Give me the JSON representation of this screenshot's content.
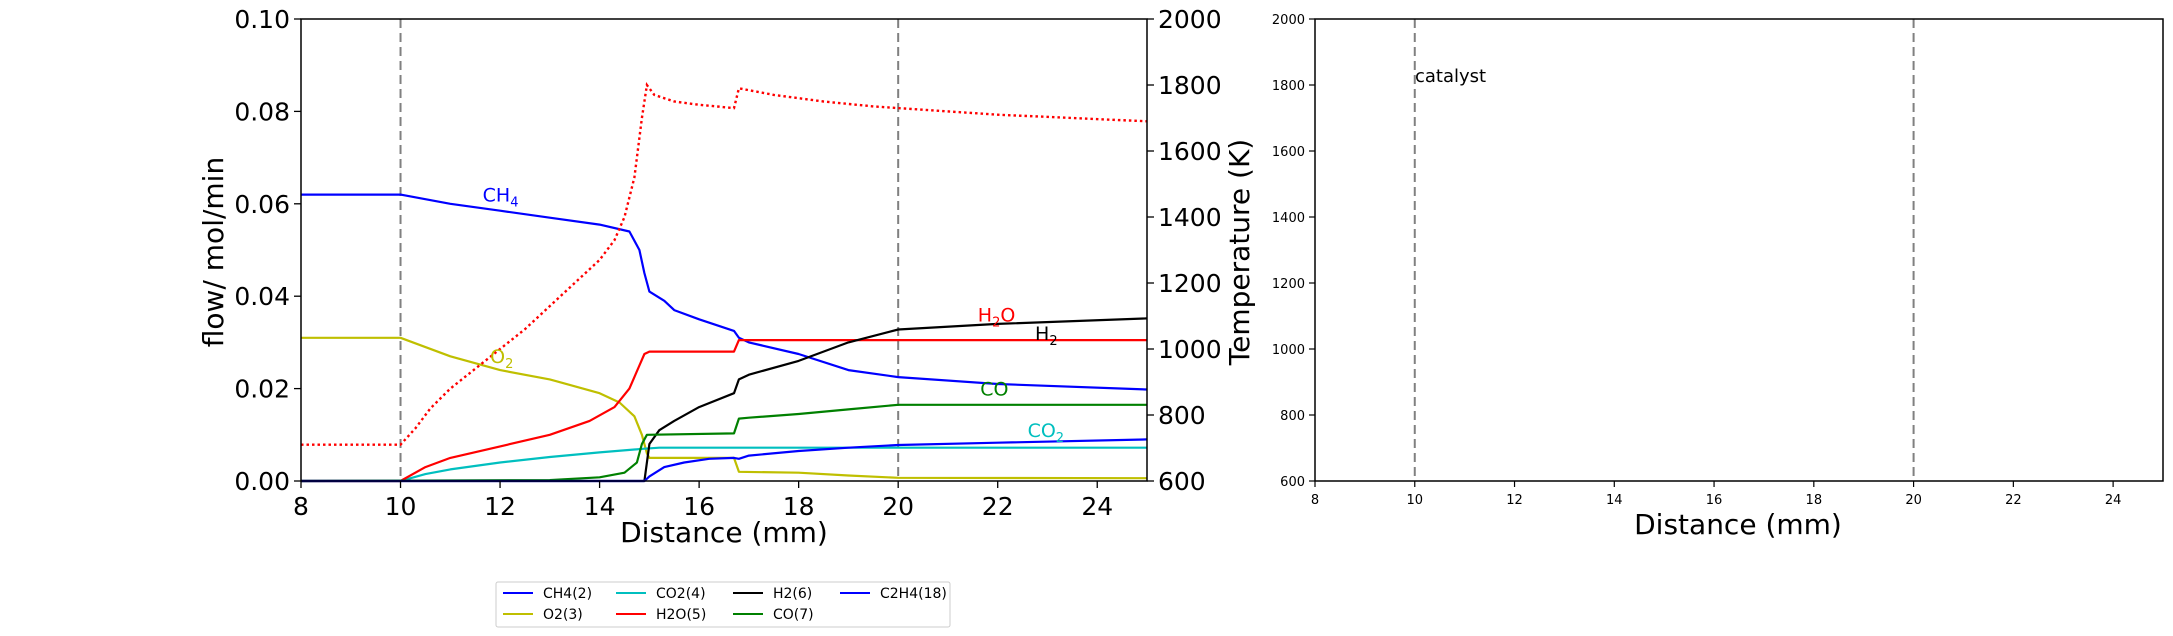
{
  "chart_data": [
    {
      "type": "line",
      "xlabel": "Distance (mm)",
      "ylabel": "flow/ mol/min",
      "y2label": "Temperature (K)",
      "xlim": [
        8,
        25
      ],
      "ylim": [
        0,
        0.1
      ],
      "y2lim": [
        600,
        2000
      ],
      "xticks": [
        "8",
        "10",
        "12",
        "14",
        "16",
        "18",
        "20",
        "22",
        "24"
      ],
      "yticks": [
        "0.00",
        "0.02",
        "0.04",
        "0.06",
        "0.08",
        "0.10"
      ],
      "y2ticks": [
        "600",
        "800",
        "1000",
        "1200",
        "1400",
        "1600",
        "1800",
        "2000"
      ],
      "vlines": [
        10,
        20
      ],
      "series": [
        {
          "name": "CH4(2)",
          "color": "#0000ff",
          "points": [
            [
              8,
              0.062
            ],
            [
              10,
              0.062
            ],
            [
              11,
              0.06
            ],
            [
              12,
              0.0585
            ],
            [
              13,
              0.057
            ],
            [
              14,
              0.0555
            ],
            [
              14.6,
              0.054
            ],
            [
              14.8,
              0.05
            ],
            [
              14.9,
              0.045
            ],
            [
              15.0,
              0.041
            ],
            [
              15.3,
              0.039
            ],
            [
              15.5,
              0.037
            ],
            [
              16.0,
              0.035
            ],
            [
              16.7,
              0.0325
            ],
            [
              16.8,
              0.031
            ],
            [
              17,
              0.03
            ],
            [
              18,
              0.0275
            ],
            [
              19,
              0.024
            ],
            [
              20,
              0.0225
            ],
            [
              22,
              0.021
            ],
            [
              25,
              0.0198
            ]
          ]
        },
        {
          "name": "O2(3)",
          "color": "#bfbf00",
          "points": [
            [
              8,
              0.031
            ],
            [
              10,
              0.031
            ],
            [
              11,
              0.027
            ],
            [
              12,
              0.024
            ],
            [
              13,
              0.022
            ],
            [
              14,
              0.019
            ],
            [
              14.4,
              0.017
            ],
            [
              14.7,
              0.014
            ],
            [
              14.85,
              0.01
            ],
            [
              14.95,
              0.006
            ],
            [
              15.0,
              0.005
            ],
            [
              16.7,
              0.005
            ],
            [
              16.8,
              0.002
            ],
            [
              18,
              0.0018
            ],
            [
              19,
              0.0012
            ],
            [
              20,
              0.0007
            ],
            [
              25,
              0.0006
            ]
          ]
        },
        {
          "name": "CO2(4)",
          "color": "#00bfbf",
          "points": [
            [
              8,
              0
            ],
            [
              10,
              0
            ],
            [
              10.5,
              0.0015
            ],
            [
              11,
              0.0025
            ],
            [
              12,
              0.004
            ],
            [
              13,
              0.0052
            ],
            [
              14,
              0.0062
            ],
            [
              14.9,
              0.007
            ],
            [
              15.2,
              0.0072
            ],
            [
              25,
              0.0072
            ]
          ]
        },
        {
          "name": "H2O(5)",
          "color": "#ff0000",
          "points": [
            [
              8,
              0
            ],
            [
              10,
              0
            ],
            [
              10.5,
              0.003
            ],
            [
              11,
              0.005
            ],
            [
              12,
              0.0075
            ],
            [
              13,
              0.01
            ],
            [
              13.8,
              0.013
            ],
            [
              14.3,
              0.016
            ],
            [
              14.6,
              0.02
            ],
            [
              14.8,
              0.025
            ],
            [
              14.9,
              0.0275
            ],
            [
              15.0,
              0.028
            ],
            [
              16.7,
              0.028
            ],
            [
              16.8,
              0.0305
            ],
            [
              25,
              0.0305
            ]
          ]
        },
        {
          "name": "H2(6)",
          "color": "#000000",
          "points": [
            [
              8,
              0
            ],
            [
              14.9,
              0
            ],
            [
              15.0,
              0.008
            ],
            [
              15.2,
              0.011
            ],
            [
              15.5,
              0.013
            ],
            [
              16.0,
              0.016
            ],
            [
              16.7,
              0.019
            ],
            [
              16.8,
              0.022
            ],
            [
              17,
              0.023
            ],
            [
              18,
              0.026
            ],
            [
              19,
              0.03
            ],
            [
              20,
              0.0328
            ],
            [
              22,
              0.034
            ],
            [
              25,
              0.0352
            ]
          ]
        },
        {
          "name": "CO(7)",
          "color": "#008000",
          "points": [
            [
              8,
              0
            ],
            [
              13,
              0.0002
            ],
            [
              14,
              0.0008
            ],
            [
              14.5,
              0.0018
            ],
            [
              14.75,
              0.004
            ],
            [
              14.85,
              0.008
            ],
            [
              14.95,
              0.01
            ],
            [
              16.7,
              0.0103
            ],
            [
              16.8,
              0.0135
            ],
            [
              17,
              0.0137
            ],
            [
              18,
              0.0145
            ],
            [
              19,
              0.0155
            ],
            [
              20,
              0.0165
            ],
            [
              25,
              0.0165
            ]
          ]
        },
        {
          "name": "C2H4(18)",
          "color": "#0000ff",
          "points": [
            [
              8,
              0
            ],
            [
              14.9,
              0
            ],
            [
              15.0,
              0.001
            ],
            [
              15.3,
              0.003
            ],
            [
              15.7,
              0.004
            ],
            [
              16.2,
              0.0048
            ],
            [
              16.7,
              0.005
            ],
            [
              16.8,
              0.0048
            ],
            [
              17,
              0.0055
            ],
            [
              18,
              0.0065
            ],
            [
              19,
              0.0072
            ],
            [
              20,
              0.0078
            ],
            [
              22,
              0.0083
            ],
            [
              25,
              0.009
            ]
          ]
        }
      ],
      "temperature_series": {
        "color": "#ff0000",
        "style": "dotted",
        "points": [
          [
            8,
            710
          ],
          [
            10,
            710
          ],
          [
            10.3,
            760
          ],
          [
            10.6,
            820
          ],
          [
            11,
            880
          ],
          [
            11.5,
            940
          ],
          [
            12,
            1000
          ],
          [
            12.5,
            1060
          ],
          [
            13,
            1130
          ],
          [
            13.5,
            1200
          ],
          [
            14,
            1270
          ],
          [
            14.3,
            1330
          ],
          [
            14.5,
            1400
          ],
          [
            14.7,
            1520
          ],
          [
            14.85,
            1700
          ],
          [
            14.95,
            1800
          ],
          [
            15.1,
            1770
          ],
          [
            15.5,
            1750
          ],
          [
            16,
            1740
          ],
          [
            16.7,
            1730
          ],
          [
            16.8,
            1790
          ],
          [
            17.5,
            1770
          ],
          [
            18.5,
            1750
          ],
          [
            19.5,
            1735
          ],
          [
            20,
            1730
          ],
          [
            22,
            1710
          ],
          [
            25,
            1690
          ]
        ]
      },
      "annotations": [
        {
          "id": "ch4",
          "base": "CH",
          "sub": "4",
          "x": 11.65,
          "y": 0.0605,
          "color": "#0000ff"
        },
        {
          "id": "o2",
          "base": "O",
          "sub": "2",
          "x": 11.8,
          "y": 0.0255,
          "color": "#bfbf00"
        },
        {
          "id": "h2o",
          "base": "H",
          "sub": "2",
          "tail": "O",
          "x": 21.6,
          "y": 0.0345,
          "color": "#ff0000"
        },
        {
          "id": "h2",
          "base": "H",
          "sub": "2",
          "x": 22.75,
          "y": 0.0305,
          "color": "#000000"
        },
        {
          "id": "co",
          "base": "CO",
          "sub": "",
          "x": 21.65,
          "y": 0.0185,
          "color": "#008000"
        },
        {
          "id": "co2",
          "base": "CO",
          "sub": "2",
          "x": 22.6,
          "y": 0.0095,
          "color": "#00bfbf"
        }
      ],
      "legend": {
        "placement": "below",
        "columns": [
          [
            {
              "label": "CH4(2)",
              "color": "#0000ff"
            },
            {
              "label": "O2(3)",
              "color": "#bfbf00"
            }
          ],
          [
            {
              "label": "CO2(4)",
              "color": "#00bfbf"
            },
            {
              "label": "H2O(5)",
              "color": "#ff0000"
            }
          ],
          [
            {
              "label": "H2(6)",
              "color": "#000000"
            },
            {
              "label": "CO(7)",
              "color": "#008000"
            }
          ],
          [
            {
              "label": "C2H4(18)",
              "color": "#0000ff"
            }
          ]
        ]
      }
    },
    {
      "type": "line",
      "xlabel": "Distance (mm)",
      "xlim": [
        8,
        25
      ],
      "ylim": [
        600,
        2000
      ],
      "xticks": [
        "8",
        "10",
        "12",
        "14",
        "16",
        "18",
        "20",
        "22",
        "24"
      ],
      "yticks": [
        "600",
        "800",
        "1000",
        "1200",
        "1400",
        "1600",
        "1800",
        "2000"
      ],
      "vlines": [
        10,
        20
      ],
      "annotations": [
        {
          "id": "catalyst",
          "text": "catalyst",
          "x": 10,
          "y": 1820
        }
      ],
      "series": []
    }
  ]
}
